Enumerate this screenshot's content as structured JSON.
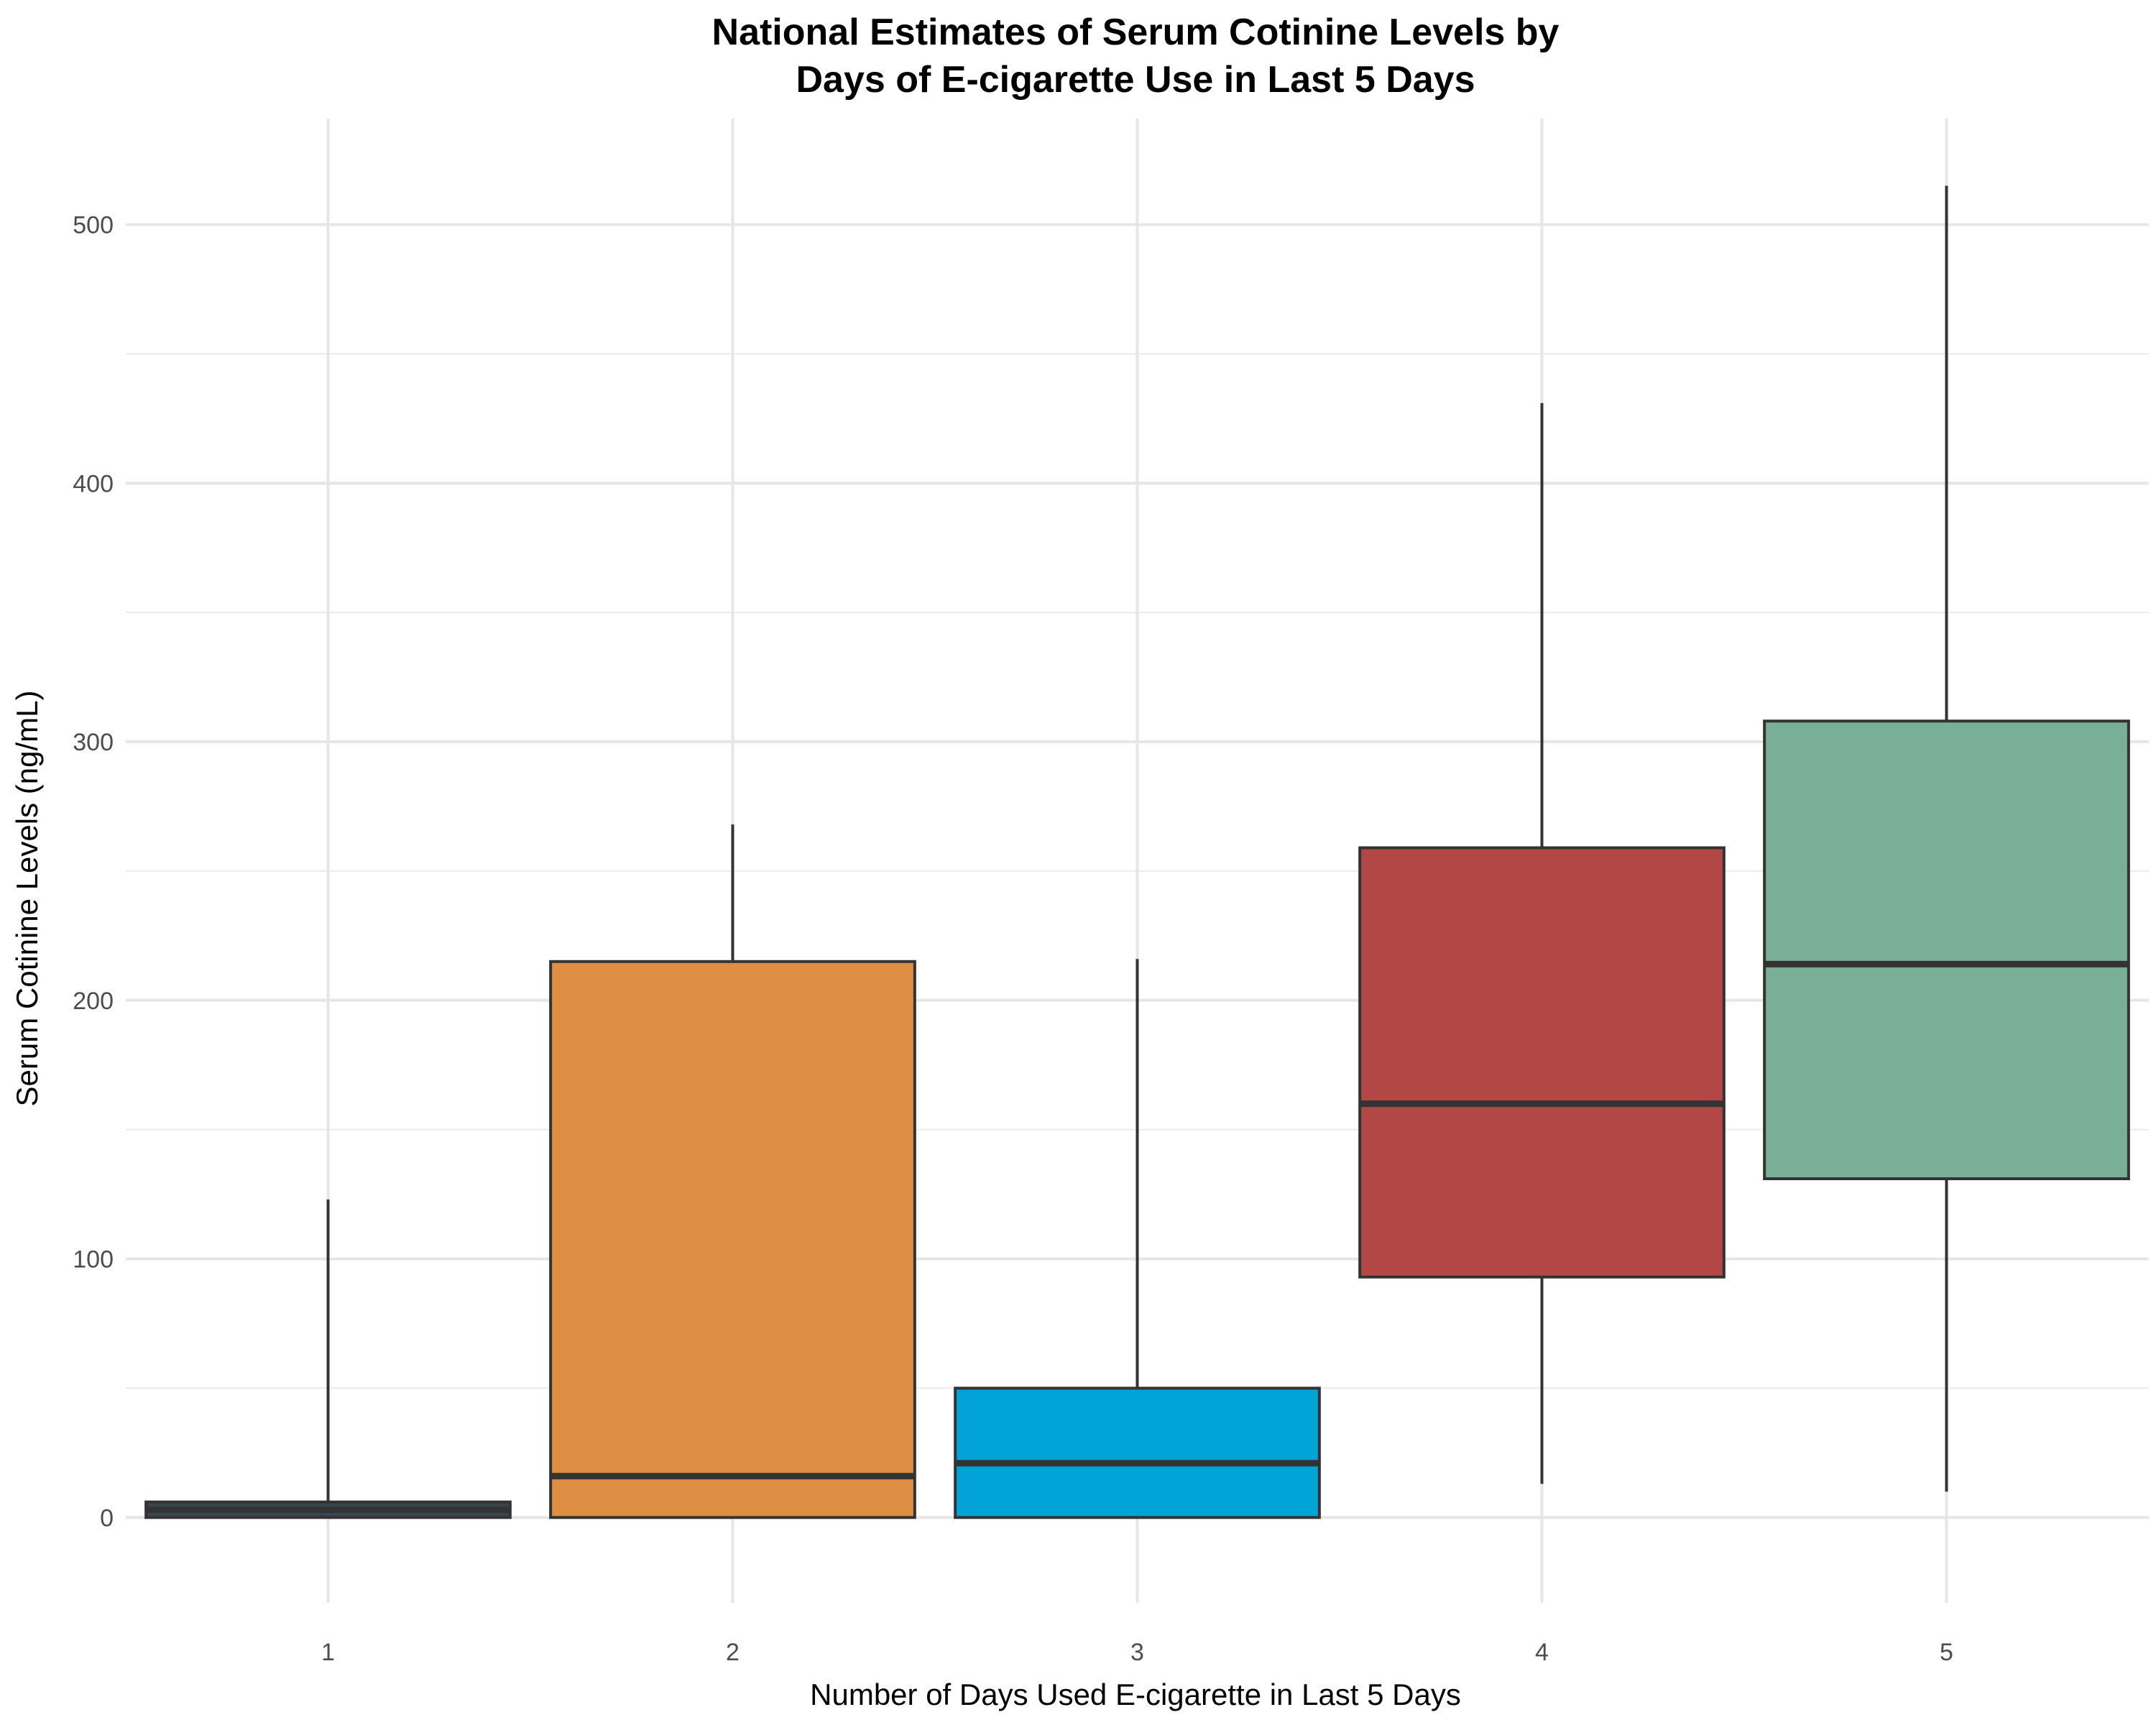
{
  "chart_data": {
    "type": "boxplot",
    "title_lines": [
      "National Estimates of Serum Cotinine Levels by",
      "Days of E-cigarette Use in Last 5 Days"
    ],
    "xlabel": "Number of Days Used E-cigarette in Last 5 Days",
    "ylabel": "Serum Cotinine Levels (ng/mL)",
    "categories": [
      "1",
      "2",
      "3",
      "4",
      "5"
    ],
    "y_ticks": [
      0,
      100,
      200,
      300,
      400,
      500
    ],
    "y_tick_labels": [
      "0",
      "100",
      "200",
      "300",
      "400",
      "500"
    ],
    "ylim": [
      -33,
      541
    ],
    "grid": true,
    "boxes": [
      {
        "category": "1",
        "whisker_low": 0,
        "q1": 0,
        "median": 3,
        "q3": 6,
        "whisker_high": 123,
        "color": "#37474f"
      },
      {
        "category": "2",
        "whisker_low": 0,
        "q1": 0,
        "median": 16,
        "q3": 215,
        "whisker_high": 268,
        "color": "#de8f44"
      },
      {
        "category": "3",
        "whisker_low": 0,
        "q1": 0,
        "median": 21,
        "q3": 50,
        "whisker_high": 216,
        "color": "#00a3d6"
      },
      {
        "category": "4",
        "whisker_low": 13,
        "q1": 93,
        "median": 160,
        "q3": 259,
        "whisker_high": 431,
        "color": "#b14846"
      },
      {
        "category": "5",
        "whisker_low": 10,
        "q1": 131,
        "median": 214,
        "q3": 308,
        "whisker_high": 515,
        "color": "#79af96"
      }
    ]
  }
}
